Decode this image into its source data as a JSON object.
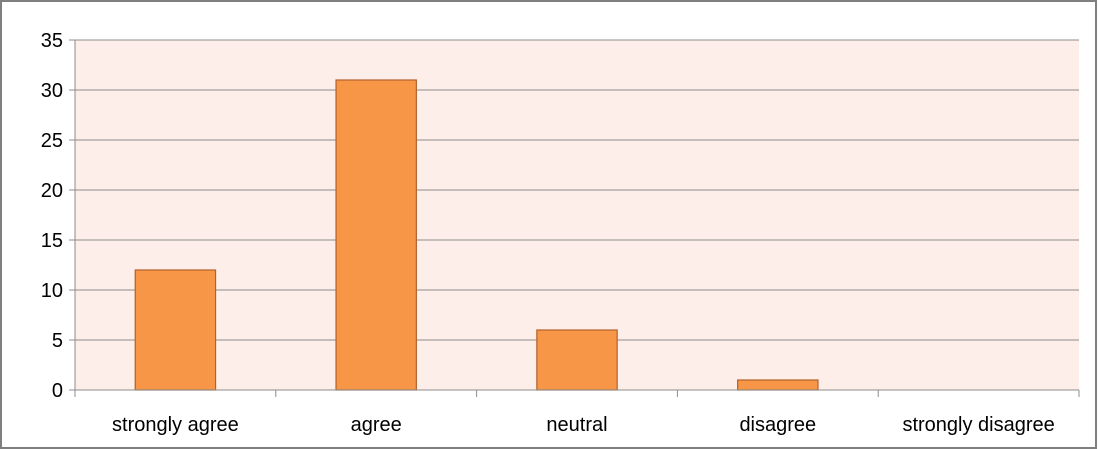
{
  "chart_data": {
    "type": "bar",
    "title": "",
    "xlabel": "",
    "ylabel": "",
    "categories": [
      "strongly agree",
      "agree",
      "neutral",
      "disagree",
      "strongly disagree"
    ],
    "values": [
      12,
      31,
      6,
      1,
      0
    ],
    "ylim": [
      0,
      35
    ],
    "yticks": [
      0,
      5,
      10,
      15,
      20,
      25,
      30,
      35
    ],
    "grid": true,
    "legend": "none",
    "colors": {
      "bar_fill": "#f79646",
      "bar_stroke": "#b3602a",
      "plot_background": "#fdeee9",
      "gridline": "#8c8c8c",
      "frame": "#7f7f7f"
    }
  }
}
